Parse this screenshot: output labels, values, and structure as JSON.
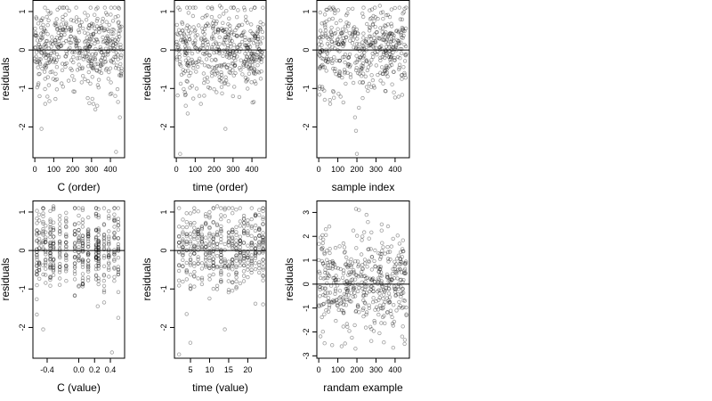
{
  "chart_data": [
    {
      "type": "scatter",
      "xlabel": "C (order)",
      "ylabel": "residuals",
      "xlim": [
        -10,
        475
      ],
      "ylim": [
        -2.8,
        1.3
      ],
      "xticks": [
        0,
        100,
        200,
        300,
        400
      ],
      "yticks": [
        -2,
        -1,
        0,
        1
      ],
      "hline": 0,
      "n": 460,
      "shape": "uniform",
      "x_range": [
        0,
        460
      ],
      "stats": {
        "sd": 0.55,
        "min": -2.65,
        "max": 1.15
      },
      "outliers": [
        [
          35,
          -2.05
        ],
        [
          430,
          -2.65
        ],
        [
          450,
          -1.75
        ],
        [
          440,
          -1.35
        ],
        [
          55,
          -1.4
        ],
        [
          310,
          -1.4
        ],
        [
          330,
          -1.45
        ],
        [
          280,
          -1.25
        ],
        [
          120,
          1.05
        ],
        [
          170,
          1.1
        ]
      ]
    },
    {
      "type": "scatter",
      "xlabel": "time (order)",
      "ylabel": "residuals",
      "xlim": [
        -10,
        475
      ],
      "ylim": [
        -2.8,
        1.3
      ],
      "xticks": [
        0,
        100,
        200,
        300,
        400
      ],
      "yticks": [
        -2,
        -1,
        0,
        1
      ],
      "hline": 0,
      "n": 460,
      "shape": "uniform",
      "x_range": [
        0,
        460
      ],
      "stats": {
        "sd": 0.55,
        "min": -2.7,
        "max": 1.15
      },
      "outliers": [
        [
          20,
          -2.7
        ],
        [
          260,
          -2.05
        ],
        [
          60,
          -1.65
        ],
        [
          50,
          -1.45
        ],
        [
          130,
          -1.4
        ],
        [
          300,
          -1.2
        ],
        [
          410,
          -1.35
        ],
        [
          230,
          1.15
        ]
      ]
    },
    {
      "type": "scatter",
      "xlabel": "sample index",
      "ylabel": "residuals",
      "xlim": [
        -10,
        475
      ],
      "ylim": [
        -2.8,
        1.3
      ],
      "xticks": [
        0,
        100,
        200,
        300,
        400
      ],
      "yticks": [
        -2,
        -1,
        0,
        1
      ],
      "hline": 0,
      "n": 460,
      "shape": "uniform",
      "x_range": [
        0,
        460
      ],
      "stats": {
        "sd": 0.55,
        "min": -2.7,
        "max": 1.15
      },
      "outliers": [
        [
          200,
          -2.7
        ],
        [
          195,
          -2.1
        ],
        [
          190,
          -1.75
        ],
        [
          210,
          -1.5
        ],
        [
          60,
          -1.4
        ],
        [
          230,
          -1.25
        ],
        [
          320,
          1.15
        ],
        [
          150,
          0.95
        ]
      ]
    },
    {
      "type": "scatter",
      "xlabel": "C (value)",
      "ylabel": "residuals",
      "xlim": [
        -0.58,
        0.58
      ],
      "ylim": [
        -2.8,
        1.3
      ],
      "xticks": [
        -0.4,
        0.0,
        0.2,
        0.4
      ],
      "xtick_labels": [
        "-0.4",
        "0.0",
        "0.2",
        "0.4"
      ],
      "yticks": [
        -2,
        -1,
        0,
        1
      ],
      "hline": 0,
      "n": 460,
      "shape": "columns",
      "x_columns": [
        -0.53,
        -0.5,
        -0.45,
        -0.42,
        -0.36,
        -0.32,
        -0.24,
        -0.16,
        -0.05,
        0.0,
        0.05,
        0.12,
        0.22,
        0.25,
        0.32,
        0.38,
        0.45,
        0.5
      ],
      "stats": {
        "sd": 0.55,
        "min": -2.65,
        "max": 1.15
      },
      "outliers": [
        [
          -0.45,
          -2.05
        ],
        [
          0.42,
          -2.65
        ],
        [
          0.5,
          -1.75
        ],
        [
          -0.32,
          1.15
        ],
        [
          0.24,
          -1.45
        ]
      ]
    },
    {
      "type": "scatter",
      "xlabel": "time (value)",
      "ylabel": "residuals",
      "xlim": [
        0.8,
        24.8
      ],
      "ylim": [
        -2.8,
        1.3
      ],
      "xticks": [
        5,
        10,
        15,
        20
      ],
      "yticks": [
        -2,
        -1,
        0,
        1
      ],
      "hline": 0,
      "n": 460,
      "shape": "columns",
      "x_columns": [
        2,
        3,
        4,
        5,
        6,
        7,
        8,
        9,
        10,
        11,
        12,
        13,
        14,
        15,
        16,
        17,
        18,
        19,
        20,
        21,
        22,
        23,
        24
      ],
      "stats": {
        "sd": 0.55,
        "min": -2.7,
        "max": 1.15
      },
      "outliers": [
        [
          2,
          -2.7
        ],
        [
          14,
          -2.05
        ],
        [
          4,
          -1.65
        ],
        [
          12,
          1.15
        ],
        [
          24,
          -1.4
        ]
      ]
    },
    {
      "type": "scatter",
      "xlabel": "randam example",
      "ylabel": "residuals",
      "xlim": [
        -10,
        475
      ],
      "ylim": [
        -3.1,
        3.5
      ],
      "xticks": [
        0,
        100,
        200,
        300,
        400
      ],
      "yticks": [
        -3,
        -2,
        -1,
        0,
        1,
        2,
        3
      ],
      "hline": 0,
      "n": 460,
      "shape": "uniform",
      "x_range": [
        0,
        460
      ],
      "stats": {
        "sd": 1.0,
        "min": -2.9,
        "max": 3.15
      },
      "outliers": [
        [
          195,
          3.15
        ],
        [
          250,
          2.9
        ],
        [
          120,
          -2.6
        ],
        [
          70,
          -2.55
        ],
        [
          450,
          -2.5
        ],
        [
          330,
          2.5
        ],
        [
          20,
          2.05
        ]
      ]
    }
  ]
}
